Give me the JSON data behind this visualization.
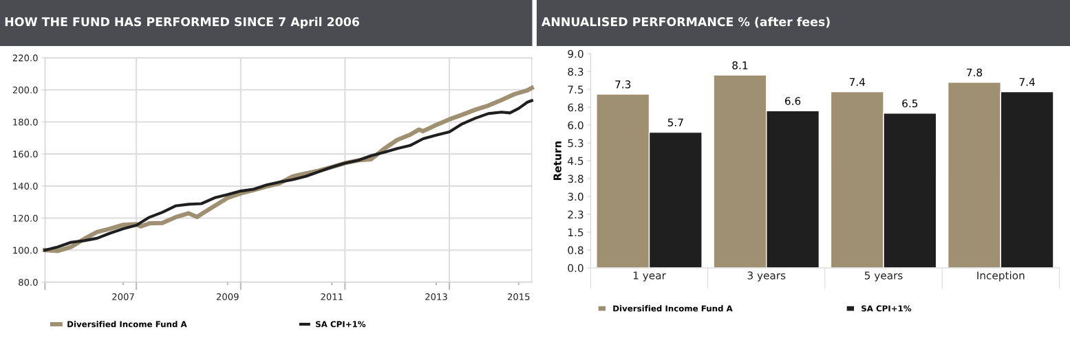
{
  "chart_data": [
    {
      "type": "line",
      "title": "HOW THE FUND HAS PERFORMED SINCE 7 April 2006",
      "xlim": [
        "2006-04",
        "2015-08"
      ],
      "ylim": [
        80,
        220
      ],
      "yticks": [
        {
          "value": 80,
          "label": "80.0"
        },
        {
          "value": 100,
          "label": "100.0"
        },
        {
          "value": 120,
          "label": "120.0"
        },
        {
          "value": 140,
          "label": "140.0"
        },
        {
          "value": 160,
          "label": "160.0"
        },
        {
          "value": 180,
          "label": "180.0"
        },
        {
          "value": 200,
          "label": "200.0"
        },
        {
          "value": 220,
          "label": "220.0"
        }
      ],
      "xticks": [
        {
          "value": "2006-04",
          "label": null
        },
        {
          "value": "2007-10",
          "label": "2007"
        },
        {
          "value": "2008-01",
          "label": null
        },
        {
          "value": "2009-10",
          "label": "2009"
        },
        {
          "value": "2010-01",
          "label": null
        },
        {
          "value": "2011-10",
          "label": "2011"
        },
        {
          "value": "2012-01",
          "label": null
        },
        {
          "value": "2013-10",
          "label": "2013"
        },
        {
          "value": "2014-01",
          "label": null
        },
        {
          "value": "2015-05",
          "label": "2015"
        }
      ],
      "grid": true,
      "legend": "bottom",
      "marker": "none",
      "line_style": "solid",
      "series": [
        {
          "name": "Diversified Income Fund A",
          "color": "#9e9070",
          "x": [
            "2006-04",
            "2006-07",
            "2006-10",
            "2007-01",
            "2007-04",
            "2007-07",
            "2007-10",
            "2008-01",
            "2008-02",
            "2008-04",
            "2008-07",
            "2008-10",
            "2009-01",
            "2009-03",
            "2009-04",
            "2009-07",
            "2009-10",
            "2010-01",
            "2010-04",
            "2010-07",
            "2010-10",
            "2011-01",
            "2011-04",
            "2011-07",
            "2011-10",
            "2012-01",
            "2012-04",
            "2012-07",
            "2012-10",
            "2013-01",
            "2013-04",
            "2013-06",
            "2013-07",
            "2013-10",
            "2014-01",
            "2014-04",
            "2014-07",
            "2014-10",
            "2015-01",
            "2015-04",
            "2015-07",
            "2015-08"
          ],
          "values": [
            100.0,
            99.5,
            102,
            107,
            111.3,
            113.4,
            115.8,
            116.2,
            114.8,
            116.7,
            117,
            120.5,
            123,
            120.7,
            122.5,
            127.6,
            132.6,
            135.4,
            137.5,
            139.7,
            141.8,
            146,
            147.8,
            149.6,
            151.8,
            154.3,
            156,
            156.7,
            163.2,
            168.8,
            172,
            175.2,
            174.2,
            178.1,
            181.6,
            184.5,
            187.6,
            190.2,
            193.7,
            197.3,
            199.7,
            201.2
          ]
        },
        {
          "name": "SA CPI+1%",
          "color": "#1f1f1f",
          "x": [
            "2006-04",
            "2006-07",
            "2006-10",
            "2007-01",
            "2007-04",
            "2007-07",
            "2007-10",
            "2008-01",
            "2008-04",
            "2008-07",
            "2008-10",
            "2009-01",
            "2009-04",
            "2009-07",
            "2009-10",
            "2010-01",
            "2010-04",
            "2010-07",
            "2010-10",
            "2011-01",
            "2011-04",
            "2011-07",
            "2011-10",
            "2012-01",
            "2012-04",
            "2012-07",
            "2012-10",
            "2013-01",
            "2013-04",
            "2013-07",
            "2013-10",
            "2014-01",
            "2014-04",
            "2014-07",
            "2014-10",
            "2015-01",
            "2015-03",
            "2015-05",
            "2015-07",
            "2015-08"
          ],
          "values": [
            100,
            102,
            104.9,
            105.9,
            107.4,
            110.6,
            113.4,
            115.5,
            120.5,
            123.6,
            127.6,
            128.6,
            129,
            132.6,
            134.7,
            136.9,
            138,
            140.7,
            142.5,
            144,
            146,
            148.9,
            151.8,
            154.3,
            156,
            158.9,
            161,
            163.4,
            165.3,
            169.5,
            171.7,
            173.8,
            178.8,
            182.3,
            185.2,
            186.1,
            185.6,
            188.4,
            192.3,
            193.3
          ]
        }
      ]
    },
    {
      "type": "bar",
      "title": "ANNUALISED PERFORMANCE % (after fees)",
      "ylabel": "Return",
      "categories": [
        "1 year",
        "3 years",
        "5 years",
        "Inception"
      ],
      "ylim": [
        0,
        9
      ],
      "yticks": [
        {
          "value": 0,
          "label": "0.0"
        },
        {
          "value": 0.75,
          "label": "0.8"
        },
        {
          "value": 1.5,
          "label": "1.5"
        },
        {
          "value": 2.25,
          "label": "2.3"
        },
        {
          "value": 3,
          "label": "3.0"
        },
        {
          "value": 3.75,
          "label": "3.8"
        },
        {
          "value": 4.5,
          "label": "4.5"
        },
        {
          "value": 5.25,
          "label": "5.3"
        },
        {
          "value": 6,
          "label": "6.0"
        },
        {
          "value": 6.75,
          "label": "6.8"
        },
        {
          "value": 7.5,
          "label": "7.5"
        },
        {
          "value": 8.25,
          "label": "8.3"
        },
        {
          "value": 9,
          "label": "9.0"
        }
      ],
      "data_labels": true,
      "legend": "bottom",
      "series": [
        {
          "name": "Diversified Income Fund A",
          "color": "#9e9070",
          "values": [
            7.3,
            8.1,
            7.4,
            7.8
          ]
        },
        {
          "name": "SA CPI+1%",
          "color": "#1f1f1f",
          "values": [
            5.7,
            6.6,
            6.5,
            7.4
          ]
        }
      ]
    }
  ]
}
